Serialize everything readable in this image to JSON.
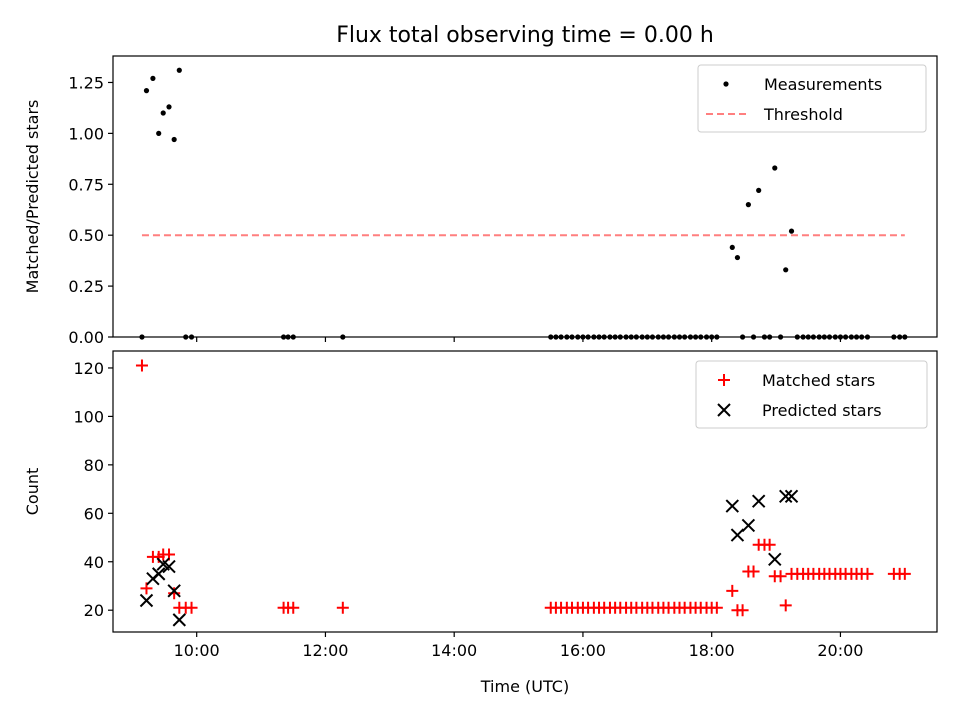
{
  "chart_data": [
    {
      "type": "scatter",
      "title": "Flux total observing time = 0.00 h",
      "xlabel": "",
      "ylabel": "Matched/Predicted stars",
      "xlim": [
        8.7,
        21.5
      ],
      "ylim": [
        0,
        1.38
      ],
      "yticks": [
        0.0,
        0.25,
        0.5,
        0.75,
        1.0,
        1.25
      ],
      "ytick_labels": [
        "0.00",
        "0.25",
        "0.50",
        "0.75",
        "1.00",
        "1.25"
      ],
      "xticks": [
        10,
        12,
        14,
        16,
        18,
        20
      ],
      "xtick_labels": [
        "",
        "",
        "",
        "",
        "",
        ""
      ],
      "legend_position": "top-right",
      "series": [
        {
          "name": "Measurements",
          "kind": "points",
          "color": "#000000",
          "points": [
            [
              9.15,
              0.0
            ],
            [
              9.22,
              1.21
            ],
            [
              9.32,
              1.27
            ],
            [
              9.41,
              1.0
            ],
            [
              9.48,
              1.1
            ],
            [
              9.57,
              1.13
            ],
            [
              9.65,
              0.97
            ],
            [
              9.73,
              1.31
            ],
            [
              9.83,
              0.0
            ],
            [
              9.92,
              0.0
            ],
            [
              11.35,
              0.0
            ],
            [
              11.42,
              0.0
            ],
            [
              11.5,
              0.0
            ],
            [
              12.27,
              0.0
            ],
            [
              15.5,
              0.0
            ],
            [
              15.58,
              0.0
            ],
            [
              15.66,
              0.0
            ],
            [
              15.75,
              0.0
            ],
            [
              15.83,
              0.0
            ],
            [
              15.92,
              0.0
            ],
            [
              16.0,
              0.0
            ],
            [
              16.08,
              0.0
            ],
            [
              16.17,
              0.0
            ],
            [
              16.25,
              0.0
            ],
            [
              16.33,
              0.0
            ],
            [
              16.42,
              0.0
            ],
            [
              16.5,
              0.0
            ],
            [
              16.58,
              0.0
            ],
            [
              16.67,
              0.0
            ],
            [
              16.75,
              0.0
            ],
            [
              16.83,
              0.0
            ],
            [
              16.92,
              0.0
            ],
            [
              17.0,
              0.0
            ],
            [
              17.08,
              0.0
            ],
            [
              17.17,
              0.0
            ],
            [
              17.25,
              0.0
            ],
            [
              17.33,
              0.0
            ],
            [
              17.42,
              0.0
            ],
            [
              17.5,
              0.0
            ],
            [
              17.58,
              0.0
            ],
            [
              17.67,
              0.0
            ],
            [
              17.75,
              0.0
            ],
            [
              17.83,
              0.0
            ],
            [
              17.92,
              0.0
            ],
            [
              18.0,
              0.0
            ],
            [
              18.08,
              0.0
            ],
            [
              18.32,
              0.44
            ],
            [
              18.4,
              0.39
            ],
            [
              18.48,
              0.0
            ],
            [
              18.57,
              0.65
            ],
            [
              18.65,
              0.0
            ],
            [
              18.73,
              0.72
            ],
            [
              18.82,
              0.0
            ],
            [
              18.9,
              0.0
            ],
            [
              18.98,
              0.83
            ],
            [
              19.07,
              0.0
            ],
            [
              19.15,
              0.33
            ],
            [
              19.24,
              0.52
            ],
            [
              19.33,
              0.0
            ],
            [
              19.42,
              0.0
            ],
            [
              19.5,
              0.0
            ],
            [
              19.58,
              0.0
            ],
            [
              19.67,
              0.0
            ],
            [
              19.75,
              0.0
            ],
            [
              19.83,
              0.0
            ],
            [
              19.92,
              0.0
            ],
            [
              20.0,
              0.0
            ],
            [
              20.08,
              0.0
            ],
            [
              20.17,
              0.0
            ],
            [
              20.25,
              0.0
            ],
            [
              20.33,
              0.0
            ],
            [
              20.42,
              0.0
            ],
            [
              20.83,
              0.0
            ],
            [
              20.92,
              0.0
            ],
            [
              21.0,
              0.0
            ]
          ]
        },
        {
          "name": "Threshold",
          "kind": "dashed-line",
          "color": "#ff7f7f",
          "points": [
            [
              9.15,
              0.5
            ],
            [
              21.0,
              0.5
            ]
          ]
        }
      ]
    },
    {
      "type": "scatter",
      "title": "",
      "xlabel": "Time (UTC)",
      "ylabel": "Count",
      "xlim": [
        8.7,
        21.5
      ],
      "ylim": [
        11,
        127
      ],
      "yticks": [
        20,
        40,
        60,
        80,
        100,
        120
      ],
      "ytick_labels": [
        "20",
        "40",
        "60",
        "80",
        "100",
        "120"
      ],
      "xticks": [
        10,
        12,
        14,
        16,
        18,
        20
      ],
      "xtick_labels": [
        "10:00",
        "12:00",
        "14:00",
        "16:00",
        "18:00",
        "20:00"
      ],
      "legend_position": "top-right",
      "series": [
        {
          "name": "Matched stars",
          "kind": "plus",
          "color": "#ff0000",
          "points": [
            [
              9.15,
              121
            ],
            [
              9.22,
              29
            ],
            [
              9.32,
              42
            ],
            [
              9.41,
              42
            ],
            [
              9.48,
              43
            ],
            [
              9.57,
              43
            ],
            [
              9.65,
              27
            ],
            [
              9.73,
              21
            ],
            [
              9.83,
              21
            ],
            [
              9.92,
              21
            ],
            [
              11.35,
              21
            ],
            [
              11.42,
              21
            ],
            [
              11.5,
              21
            ],
            [
              12.27,
              21
            ],
            [
              15.5,
              21
            ],
            [
              15.58,
              21
            ],
            [
              15.66,
              21
            ],
            [
              15.75,
              21
            ],
            [
              15.83,
              21
            ],
            [
              15.92,
              21
            ],
            [
              16.0,
              21
            ],
            [
              16.08,
              21
            ],
            [
              16.17,
              21
            ],
            [
              16.25,
              21
            ],
            [
              16.33,
              21
            ],
            [
              16.42,
              21
            ],
            [
              16.5,
              21
            ],
            [
              16.58,
              21
            ],
            [
              16.67,
              21
            ],
            [
              16.75,
              21
            ],
            [
              16.83,
              21
            ],
            [
              16.92,
              21
            ],
            [
              17.0,
              21
            ],
            [
              17.08,
              21
            ],
            [
              17.17,
              21
            ],
            [
              17.25,
              21
            ],
            [
              17.33,
              21
            ],
            [
              17.42,
              21
            ],
            [
              17.5,
              21
            ],
            [
              17.58,
              21
            ],
            [
              17.67,
              21
            ],
            [
              17.75,
              21
            ],
            [
              17.83,
              21
            ],
            [
              17.92,
              21
            ],
            [
              18.0,
              21
            ],
            [
              18.08,
              21
            ],
            [
              18.32,
              28
            ],
            [
              18.4,
              20
            ],
            [
              18.48,
              20
            ],
            [
              18.57,
              36
            ],
            [
              18.65,
              36
            ],
            [
              18.73,
              47
            ],
            [
              18.82,
              47
            ],
            [
              18.9,
              47
            ],
            [
              18.98,
              34
            ],
            [
              19.07,
              34
            ],
            [
              19.15,
              22
            ],
            [
              19.24,
              35
            ],
            [
              19.33,
              35
            ],
            [
              19.42,
              35
            ],
            [
              19.5,
              35
            ],
            [
              19.58,
              35
            ],
            [
              19.67,
              35
            ],
            [
              19.75,
              35
            ],
            [
              19.83,
              35
            ],
            [
              19.92,
              35
            ],
            [
              20.0,
              35
            ],
            [
              20.08,
              35
            ],
            [
              20.17,
              35
            ],
            [
              20.25,
              35
            ],
            [
              20.33,
              35
            ],
            [
              20.42,
              35
            ],
            [
              20.83,
              35
            ],
            [
              20.92,
              35
            ],
            [
              21.0,
              35
            ]
          ]
        },
        {
          "name": "Predicted stars",
          "kind": "cross",
          "color": "#000000",
          "points": [
            [
              9.22,
              24
            ],
            [
              9.32,
              33
            ],
            [
              9.41,
              35
            ],
            [
              9.48,
              39
            ],
            [
              9.57,
              38
            ],
            [
              9.65,
              28
            ],
            [
              9.73,
              16
            ],
            [
              18.32,
              63
            ],
            [
              18.4,
              51
            ],
            [
              18.57,
              55
            ],
            [
              18.73,
              65
            ],
            [
              18.98,
              41
            ],
            [
              19.15,
              67
            ],
            [
              19.24,
              67
            ]
          ]
        }
      ]
    }
  ]
}
